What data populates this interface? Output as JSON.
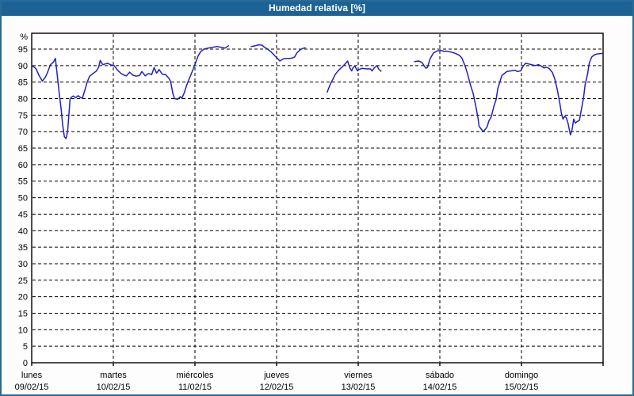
{
  "window": {
    "title": "Humedad relativa [%]"
  },
  "colors": {
    "header_bg": "#1d6294",
    "header_text": "#ffffff",
    "window_border": "#2a6a96",
    "window_bg": "#fcfdfc",
    "plot_bg": "#ffffff",
    "plot_border": "#000000",
    "grid": "#000000",
    "line": "#2020c4",
    "label_text": "#000000"
  },
  "chart_data": {
    "type": "line",
    "title": "Humedad relativa [%]",
    "ylabel": "%",
    "xlabel": "",
    "ylim": [
      0,
      100
    ],
    "xlim_days": [
      0,
      7
    ],
    "grid": "dashed",
    "legend": "none",
    "y_ticks": [
      0,
      5,
      10,
      15,
      20,
      25,
      30,
      35,
      40,
      45,
      50,
      55,
      60,
      65,
      70,
      75,
      80,
      85,
      90,
      95
    ],
    "x_axis_days": [
      {
        "name": "lunes",
        "date": "09/02/15"
      },
      {
        "name": "martes",
        "date": "10/02/15"
      },
      {
        "name": "miércoles",
        "date": "11/02/15"
      },
      {
        "name": "jueves",
        "date": "12/02/15"
      },
      {
        "name": "viernes",
        "date": "13/02/15"
      },
      {
        "name": "sábado",
        "date": "14/02/15"
      },
      {
        "name": "domingo",
        "date": "15/02/15"
      }
    ],
    "series": [
      {
        "name": "Humedad relativa",
        "unit": "%",
        "color": "#2020c4",
        "segments": [
          [
            [
              0.0,
              90.0
            ],
            [
              0.05,
              89.2
            ],
            [
              0.09,
              87.0
            ],
            [
              0.13,
              85.3
            ],
            [
              0.17,
              86.6
            ],
            [
              0.19,
              87.7
            ],
            [
              0.23,
              90.3
            ],
            [
              0.25,
              90.7
            ],
            [
              0.27,
              91.2
            ],
            [
              0.29,
              92.2
            ],
            [
              0.32,
              85.5
            ],
            [
              0.34,
              81.0
            ],
            [
              0.36,
              77.0
            ],
            [
              0.38,
              72.0
            ],
            [
              0.4,
              68.5
            ],
            [
              0.42,
              67.9
            ],
            [
              0.44,
              70.0
            ],
            [
              0.45,
              73.5
            ],
            [
              0.46,
              76.5
            ],
            [
              0.47,
              79.9
            ],
            [
              0.49,
              80.5
            ],
            [
              0.51,
              80.8
            ],
            [
              0.54,
              80.3
            ],
            [
              0.57,
              80.9
            ],
            [
              0.6,
              80.3
            ],
            [
              0.62,
              80.1
            ],
            [
              0.65,
              82.5
            ],
            [
              0.68,
              85.0
            ],
            [
              0.71,
              86.8
            ],
            [
              0.75,
              87.6
            ],
            [
              0.79,
              88.3
            ],
            [
              0.82,
              89.5
            ],
            [
              0.84,
              91.6
            ],
            [
              0.87,
              90.3
            ],
            [
              0.9,
              90.5
            ],
            [
              0.93,
              90.7
            ],
            [
              0.97,
              90.2
            ],
            [
              1.01,
              90.0
            ],
            [
              1.05,
              88.7
            ],
            [
              1.09,
              87.7
            ],
            [
              1.13,
              87.1
            ],
            [
              1.16,
              86.9
            ],
            [
              1.2,
              88.0
            ],
            [
              1.24,
              87.1
            ],
            [
              1.28,
              86.8
            ],
            [
              1.32,
              87.0
            ],
            [
              1.35,
              88.2
            ],
            [
              1.39,
              86.9
            ],
            [
              1.43,
              87.6
            ],
            [
              1.47,
              87.3
            ],
            [
              1.5,
              89.4
            ],
            [
              1.53,
              87.7
            ],
            [
              1.56,
              88.8
            ],
            [
              1.6,
              87.4
            ],
            [
              1.64,
              87.3
            ],
            [
              1.68,
              86.2
            ],
            [
              1.7,
              85.3
            ],
            [
              1.73,
              81.5
            ],
            [
              1.75,
              80.0
            ],
            [
              1.79,
              79.8
            ],
            [
              1.82,
              80.6
            ],
            [
              1.84,
              80.1
            ],
            [
              1.87,
              81.8
            ],
            [
              1.9,
              84.2
            ],
            [
              1.94,
              86.6
            ],
            [
              1.98,
              89.0
            ],
            [
              2.01,
              91.0
            ],
            [
              2.04,
              93.0
            ],
            [
              2.07,
              94.2
            ],
            [
              2.11,
              95.0
            ],
            [
              2.16,
              95.3
            ],
            [
              2.21,
              95.5
            ],
            [
              2.27,
              95.8
            ],
            [
              2.33,
              95.5
            ],
            [
              2.37,
              95.3
            ],
            [
              2.41,
              96.0
            ]
          ],
          [
            [
              2.69,
              95.8
            ],
            [
              2.74,
              96.0
            ],
            [
              2.78,
              96.3
            ],
            [
              2.82,
              96.2
            ],
            [
              2.85,
              95.6
            ],
            [
              2.89,
              95.0
            ],
            [
              2.93,
              94.2
            ],
            [
              2.97,
              93.2
            ],
            [
              3.01,
              92.2
            ],
            [
              3.04,
              91.4
            ],
            [
              3.08,
              92.0
            ],
            [
              3.12,
              92.2
            ],
            [
              3.16,
              92.2
            ],
            [
              3.19,
              92.3
            ],
            [
              3.22,
              92.6
            ],
            [
              3.25,
              93.9
            ],
            [
              3.29,
              94.8
            ],
            [
              3.32,
              95.2
            ],
            [
              3.35,
              95.4
            ]
          ],
          [
            [
              3.62,
              82.0
            ],
            [
              3.66,
              84.5
            ],
            [
              3.69,
              85.9
            ],
            [
              3.72,
              87.4
            ],
            [
              3.76,
              88.6
            ],
            [
              3.79,
              89.3
            ],
            [
              3.82,
              90.0
            ],
            [
              3.85,
              90.8
            ],
            [
              3.87,
              91.4
            ],
            [
              3.9,
              89.2
            ],
            [
              3.92,
              88.4
            ],
            [
              3.94,
              89.5
            ],
            [
              3.96,
              89.8
            ],
            [
              3.99,
              88.4
            ],
            [
              4.01,
              88.8
            ],
            [
              4.05,
              89.2
            ],
            [
              4.1,
              89.0
            ],
            [
              4.15,
              89.0
            ],
            [
              4.17,
              88.4
            ],
            [
              4.2,
              89.4
            ],
            [
              4.23,
              90.0
            ],
            [
              4.25,
              89.0
            ],
            [
              4.28,
              88.3
            ]
          ],
          [
            [
              4.69,
              91.2
            ],
            [
              4.74,
              91.4
            ],
            [
              4.78,
              91.0
            ],
            [
              4.81,
              89.9
            ],
            [
              4.83,
              89.2
            ],
            [
              4.85,
              89.5
            ],
            [
              4.88,
              92.0
            ],
            [
              4.92,
              93.8
            ],
            [
              4.97,
              94.5
            ],
            [
              5.02,
              94.6
            ],
            [
              5.05,
              94.3
            ],
            [
              5.08,
              94.4
            ],
            [
              5.11,
              94.2
            ],
            [
              5.14,
              94.1
            ],
            [
              5.17,
              93.9
            ],
            [
              5.21,
              93.5
            ],
            [
              5.24,
              93.1
            ],
            [
              5.27,
              92.3
            ],
            [
              5.31,
              89.9
            ],
            [
              5.34,
              87.5
            ],
            [
              5.37,
              84.6
            ],
            [
              5.41,
              81.4
            ],
            [
              5.44,
              77.8
            ],
            [
              5.47,
              73.8
            ],
            [
              5.48,
              71.7
            ],
            [
              5.5,
              71.0
            ],
            [
              5.53,
              70.0
            ],
            [
              5.56,
              70.8
            ],
            [
              5.58,
              71.5
            ],
            [
              5.6,
              73.2
            ],
            [
              5.63,
              74.5
            ],
            [
              5.66,
              77.5
            ],
            [
              5.69,
              79.8
            ],
            [
              5.71,
              83.0
            ],
            [
              5.74,
              85.4
            ],
            [
              5.76,
              87.0
            ],
            [
              5.8,
              87.8
            ],
            [
              5.82,
              88.2
            ],
            [
              5.87,
              88.4
            ],
            [
              5.92,
              88.6
            ],
            [
              5.95,
              88.2
            ],
            [
              5.99,
              88.4
            ],
            [
              6.02,
              89.8
            ],
            [
              6.05,
              90.7
            ],
            [
              6.09,
              90.5
            ],
            [
              6.12,
              90.3
            ],
            [
              6.17,
              90.0
            ],
            [
              6.21,
              90.3
            ],
            [
              6.24,
              89.9
            ],
            [
              6.28,
              89.3
            ],
            [
              6.31,
              89.5
            ],
            [
              6.34,
              89.1
            ],
            [
              6.38,
              87.9
            ],
            [
              6.41,
              85.8
            ],
            [
              6.44,
              82.6
            ],
            [
              6.47,
              78.6
            ],
            [
              6.49,
              75.4
            ],
            [
              6.51,
              73.8
            ],
            [
              6.53,
              74.7
            ],
            [
              6.55,
              74.2
            ],
            [
              6.57,
              72.6
            ],
            [
              6.6,
              69.0
            ],
            [
              6.62,
              70.6
            ],
            [
              6.64,
              73.8
            ],
            [
              6.66,
              72.6
            ],
            [
              6.68,
              73.0
            ],
            [
              6.71,
              73.4
            ],
            [
              6.73,
              76.2
            ],
            [
              6.76,
              80.2
            ],
            [
              6.78,
              84.2
            ],
            [
              6.81,
              87.4
            ],
            [
              6.83,
              90.7
            ],
            [
              6.86,
              92.6
            ],
            [
              6.89,
              93.2
            ],
            [
              6.92,
              93.5
            ],
            [
              6.96,
              93.6
            ],
            [
              7.0,
              93.7
            ]
          ]
        ]
      }
    ]
  }
}
